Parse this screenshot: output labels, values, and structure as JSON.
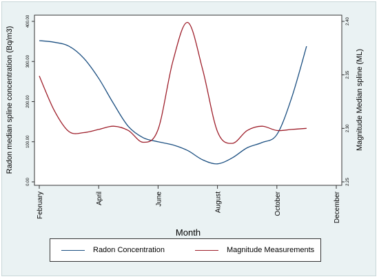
{
  "chart_data": {
    "type": "line",
    "xlabel": "Month",
    "ylabel_left": "Radon median spline concentration (Bq/m3)",
    "ylabel_right": "Magnitude Median spline (ML)",
    "x_ticks": [
      {
        "month": 2,
        "label": "February"
      },
      {
        "month": 4,
        "label": "April"
      },
      {
        "month": 6,
        "label": "June"
      },
      {
        "month": 8,
        "label": "August"
      },
      {
        "month": 10,
        "label": "October"
      },
      {
        "month": 12,
        "label": "December"
      }
    ],
    "x_range": [
      2,
      12
    ],
    "y_left_ticks": [
      "0.00",
      "100.00",
      "200.00",
      "300.00",
      "400.00"
    ],
    "y_left_range": [
      0,
      400
    ],
    "y_right_ticks": [
      "2.25",
      "2.30",
      "2.35",
      "2.40"
    ],
    "y_right_range": [
      2.25,
      2.4
    ],
    "legend_position": "bottom",
    "series": [
      {
        "name": "Radon Concentration",
        "axis": "left",
        "color": "#1a4e80",
        "x": [
          2,
          2.5,
          3,
          3.5,
          4,
          4.5,
          5,
          5.5,
          6,
          6.5,
          7,
          7.5,
          8,
          8.5,
          9,
          9.5,
          10,
          10.5,
          11
        ],
        "y": [
          352,
          348,
          338,
          308,
          258,
          195,
          138,
          110,
          100,
          92,
          78,
          55,
          45,
          60,
          85,
          98,
          118,
          210,
          338
        ]
      },
      {
        "name": "Magnitude Measurements",
        "axis": "right",
        "color": "#9e1e2a",
        "x": [
          2,
          2.5,
          3,
          3.5,
          4,
          4.5,
          5,
          5.5,
          6,
          6.5,
          7,
          7.5,
          8,
          8.5,
          9,
          9.5,
          10,
          10.5,
          11
        ],
        "y": [
          2.349,
          2.317,
          2.297,
          2.296,
          2.299,
          2.302,
          2.298,
          2.287,
          2.299,
          2.363,
          2.399,
          2.355,
          2.297,
          2.286,
          2.298,
          2.302,
          2.298,
          2.299,
          2.3
        ]
      }
    ]
  }
}
